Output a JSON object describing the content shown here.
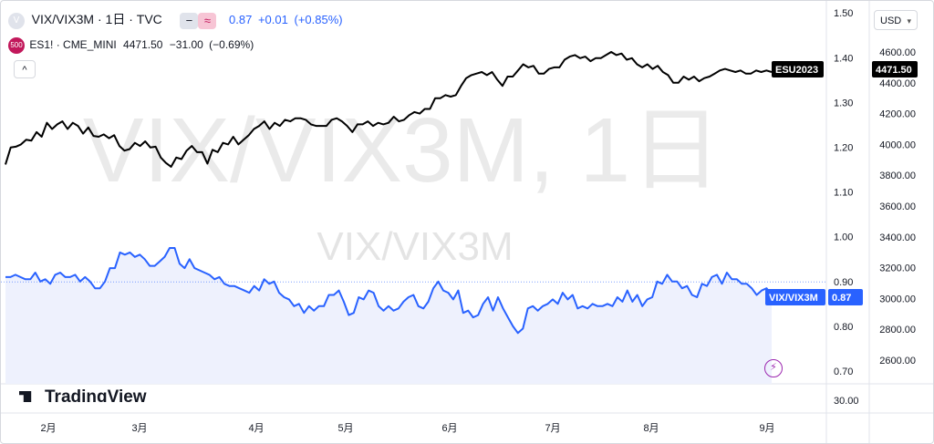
{
  "header": {
    "symbol_title": "VIX/VIX3M · 1日 · TVC",
    "minus_label": "−",
    "approx_label": "≈",
    "value": "0.87",
    "change": "+0.01",
    "change_pct": "(+0.85%)",
    "compare_badge": "500",
    "compare_symbol": "ES1! · CME_MINI",
    "compare_value": "4471.50",
    "compare_change": "−31.00",
    "compare_change_pct": "(−0.69%)",
    "collapse_label": "^"
  },
  "currency_button": {
    "label": "USD",
    "chevron": "▾"
  },
  "watermark": {
    "main": "VIX/VIX3M, 1日",
    "sub": "VIX/VIX3M"
  },
  "logo_text": "TradingView",
  "colors": {
    "vix_line": "#2962ff",
    "es_line": "#000000",
    "vix_fill": "#eef1fd",
    "badge_red": "#c2185b"
  },
  "chart_data": {
    "type": "line",
    "x_tick_labels": [
      "2月",
      "3月",
      "4月",
      "5月",
      "6月",
      "7月",
      "8月",
      "9月"
    ],
    "x_range": [
      "2023-01-15",
      "2023-09-07"
    ],
    "y_left_scale_note": "ratio axis for VIX/VIX3M",
    "y_ratio_ticks": [
      "1.50",
      "1.40",
      "1.30",
      "1.20",
      "1.10",
      "1.00",
      "0.90",
      "0.80",
      "0.70"
    ],
    "y_ratio_range": [
      0.7,
      1.5
    ],
    "y_es_ticks": [
      "4600.00",
      "4400.00",
      "4200.00",
      "4000.00",
      "3800.00",
      "3600.00",
      "3400.00",
      "3200.00",
      "3000.00",
      "2800.00",
      "2600.00"
    ],
    "y_es_range": [
      2600,
      4600
    ],
    "volume_tick": "30.00",
    "series": [
      {
        "name": "VIX/VIX3M",
        "last_label": "VIX/VIX3M",
        "last_value": "0.87",
        "values": [
          0.91,
          0.91,
          0.915,
          0.91,
          0.905,
          0.905,
          0.92,
          0.9,
          0.905,
          0.895,
          0.915,
          0.92,
          0.91,
          0.91,
          0.915,
          0.9,
          0.91,
          0.9,
          0.885,
          0.885,
          0.9,
          0.93,
          0.93,
          0.965,
          0.96,
          0.965,
          0.955,
          0.96,
          0.95,
          0.935,
          0.935,
          0.945,
          0.955,
          0.975,
          0.975,
          0.94,
          0.93,
          0.95,
          0.93,
          0.925,
          0.92,
          0.915,
          0.905,
          0.91,
          0.895,
          0.89,
          0.89,
          0.885,
          0.88,
          0.875,
          0.89,
          0.88,
          0.905,
          0.895,
          0.9,
          0.875,
          0.865,
          0.86,
          0.845,
          0.85,
          0.83,
          0.845,
          0.835,
          0.845,
          0.845,
          0.87,
          0.87,
          0.88,
          0.855,
          0.825,
          0.83,
          0.865,
          0.86,
          0.88,
          0.875,
          0.845,
          0.835,
          0.845,
          0.835,
          0.84,
          0.855,
          0.865,
          0.87,
          0.845,
          0.84,
          0.855,
          0.885,
          0.9,
          0.88,
          0.875,
          0.86,
          0.88,
          0.83,
          0.835,
          0.82,
          0.825,
          0.85,
          0.865,
          0.835,
          0.865,
          0.84,
          0.82,
          0.8,
          0.785,
          0.795,
          0.84,
          0.845,
          0.835,
          0.845,
          0.85,
          0.86,
          0.85,
          0.875,
          0.86,
          0.87,
          0.84,
          0.845,
          0.84,
          0.85,
          0.845,
          0.845,
          0.85,
          0.845,
          0.865,
          0.855,
          0.88,
          0.855,
          0.87,
          0.845,
          0.86,
          0.865,
          0.9,
          0.895,
          0.915,
          0.9,
          0.9,
          0.885,
          0.89,
          0.87,
          0.865,
          0.895,
          0.89,
          0.91,
          0.915,
          0.895,
          0.92,
          0.905,
          0.905,
          0.895,
          0.895,
          0.885,
          0.87,
          0.88,
          0.885,
          0.87
        ]
      },
      {
        "name": "ESU2023",
        "last_label": "ESU2023",
        "last_value": "4471.50",
        "values": [
          3870,
          3980,
          3985,
          4000,
          4030,
          4025,
          4080,
          4050,
          4140,
          4100,
          4130,
          4150,
          4100,
          4140,
          4120,
          4070,
          4110,
          4055,
          4050,
          4065,
          4040,
          4060,
          3990,
          3960,
          3970,
          4010,
          3990,
          4020,
          3980,
          3985,
          3915,
          3880,
          3855,
          3915,
          3905,
          3960,
          3990,
          3950,
          3950,
          3875,
          3965,
          3950,
          4010,
          4000,
          4050,
          4000,
          4030,
          4060,
          4100,
          4120,
          4150,
          4100,
          4140,
          4120,
          4160,
          4150,
          4170,
          4170,
          4160,
          4130,
          4120,
          4120,
          4120,
          4160,
          4170,
          4150,
          4120,
          4080,
          4130,
          4130,
          4150,
          4120,
          4140,
          4130,
          4140,
          4180,
          4150,
          4160,
          4190,
          4210,
          4200,
          4230,
          4230,
          4300,
          4300,
          4320,
          4310,
          4320,
          4380,
          4430,
          4450,
          4460,
          4470,
          4450,
          4470,
          4420,
          4380,
          4440,
          4440,
          4480,
          4520,
          4500,
          4510,
          4460,
          4460,
          4490,
          4500,
          4500,
          4550,
          4570,
          4580,
          4560,
          4570,
          4540,
          4560,
          4560,
          4580,
          4600,
          4580,
          4590,
          4550,
          4560,
          4520,
          4500,
          4520,
          4490,
          4510,
          4470,
          4450,
          4400,
          4400,
          4440,
          4420,
          4440,
          4410,
          4430,
          4440,
          4460,
          4480,
          4490,
          4480,
          4470,
          4480,
          4460,
          4460,
          4480,
          4470,
          4480,
          4470
        ]
      }
    ]
  }
}
